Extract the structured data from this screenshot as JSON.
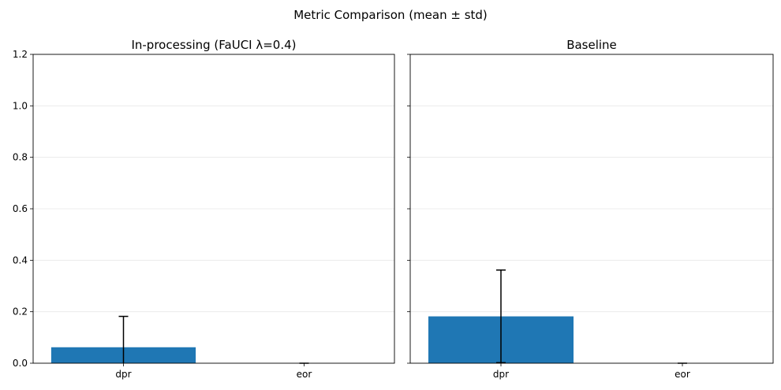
{
  "figure": {
    "suptitle": "Metric Comparison (mean ± std)"
  },
  "chart_data": [
    {
      "type": "bar",
      "title": "In-processing (FaUCI λ=0.4)",
      "categories": [
        "dpr",
        "eor"
      ],
      "values": [
        0.062,
        0.0
      ],
      "errors": [
        0.12,
        0.0
      ],
      "xlabel": "",
      "ylabel": "",
      "ylim": [
        0,
        1.2
      ],
      "yticks": [
        "0.0",
        "0.2",
        "0.4",
        "0.6",
        "0.8",
        "1.0",
        "1.2"
      ],
      "grid": "y",
      "bar_color": "#1f77b4"
    },
    {
      "type": "bar",
      "title": "Baseline",
      "categories": [
        "dpr",
        "eor"
      ],
      "values": [
        0.182,
        0.0
      ],
      "errors": [
        0.18,
        0.0
      ],
      "xlabel": "",
      "ylabel": "",
      "ylim": [
        0,
        1.2
      ],
      "yticks": [
        "0.0",
        "0.2",
        "0.4",
        "0.6",
        "0.8",
        "1.0",
        "1.2"
      ],
      "grid": "y",
      "bar_color": "#1f77b4"
    }
  ]
}
